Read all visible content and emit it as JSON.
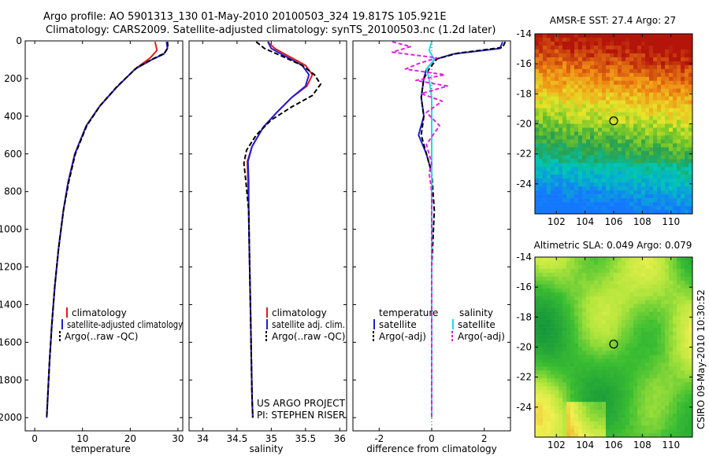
{
  "title_line1": "Argo profile: AO 5901313_130 01-May-2010 20100503_324 19.817S 105.921E",
  "title_line2": "Climatology: CARS2009. Satellite-adjusted climatology: synTS_20100503.nc (1.2d later)",
  "side_label": "CSIRO 09-May-2010 10:30:52",
  "colors": {
    "climatology": "#e41a1c",
    "satellite": "#1f1fd6",
    "argo": "#000000",
    "sat_sal": "#22d8e8",
    "argo_sal": "#e020e0"
  },
  "chart_data": [
    {
      "type": "line",
      "id": "temperature",
      "xlabel": "temperature",
      "xlim": [
        -2,
        31
      ],
      "ylim": [
        0,
        2070
      ],
      "xticks": [
        0,
        10,
        20,
        30
      ],
      "yticks": [
        0,
        200,
        400,
        600,
        800,
        1000,
        1200,
        1400,
        1600,
        1800,
        2000
      ],
      "legend": [
        "climatology",
        "satellite-adjusted climatology",
        "Argo(..raw -QC)"
      ],
      "series": [
        {
          "name": "climatology",
          "color_key": "climatology",
          "dash": "",
          "points": [
            [
              25.2,
              5
            ],
            [
              25.6,
              50
            ],
            [
              24.2,
              90
            ],
            [
              21,
              150
            ],
            [
              17,
              250
            ],
            [
              13.5,
              350
            ],
            [
              10.8,
              450
            ],
            [
              8.4,
              600
            ],
            [
              7,
              750
            ],
            [
              6,
              900
            ],
            [
              5,
              1100
            ],
            [
              4.2,
              1300
            ],
            [
              3.6,
              1500
            ],
            [
              3.1,
              1700
            ],
            [
              2.7,
              1900
            ],
            [
              2.5,
              2000
            ]
          ]
        },
        {
          "name": "satellite-adjusted climatology",
          "color_key": "satellite",
          "dash": "",
          "points": [
            [
              27.6,
              5
            ],
            [
              27.8,
              40
            ],
            [
              27,
              70
            ],
            [
              24.5,
              100
            ],
            [
              21,
              150
            ],
            [
              17,
              250
            ],
            [
              13.5,
              350
            ],
            [
              10.8,
              450
            ],
            [
              8.4,
              600
            ],
            [
              7,
              750
            ],
            [
              6,
              900
            ],
            [
              5,
              1100
            ],
            [
              4.2,
              1300
            ],
            [
              3.6,
              1500
            ],
            [
              3.1,
              1700
            ],
            [
              2.7,
              1900
            ],
            [
              2.5,
              2000
            ]
          ]
        },
        {
          "name": "Argo(..raw -QC)",
          "color_key": "argo",
          "dash": "6,3",
          "points": [
            [
              27.8,
              5
            ],
            [
              27.9,
              35
            ],
            [
              27.2,
              65
            ],
            [
              24.8,
              95
            ],
            [
              21.5,
              140
            ],
            [
              17.3,
              240
            ],
            [
              13.8,
              340
            ],
            [
              10.9,
              450
            ],
            [
              8.5,
              600
            ],
            [
              7.1,
              750
            ],
            [
              6,
              900
            ],
            [
              5,
              1100
            ],
            [
              4.2,
              1300
            ],
            [
              3.6,
              1500
            ],
            [
              3.1,
              1700
            ],
            [
              2.7,
              1900
            ],
            [
              2.5,
              2000
            ]
          ]
        }
      ]
    },
    {
      "type": "line",
      "id": "salinity",
      "xlabel": "salinity",
      "xlim": [
        33.8,
        36.1
      ],
      "ylim": [
        0,
        2070
      ],
      "xticks": [
        34,
        34.5,
        35,
        35.5,
        36
      ],
      "legend": [
        "climatology",
        "satellite adj. clim.",
        "Argo(..raw -QC)"
      ],
      "annotations": [
        "US ARGO PROJECT",
        "PI: STEPHEN RISER"
      ],
      "series": [
        {
          "name": "climatology",
          "color_key": "climatology",
          "dash": "",
          "points": [
            [
              34.95,
              5
            ],
            [
              35.05,
              40
            ],
            [
              35.25,
              80
            ],
            [
              35.5,
              130
            ],
            [
              35.6,
              180
            ],
            [
              35.52,
              240
            ],
            [
              35.3,
              300
            ],
            [
              35.08,
              380
            ],
            [
              34.88,
              460
            ],
            [
              34.72,
              560
            ],
            [
              34.65,
              640
            ],
            [
              34.66,
              750
            ],
            [
              34.67,
              900
            ],
            [
              34.68,
              1100
            ],
            [
              34.69,
              1300
            ],
            [
              34.7,
              1500
            ],
            [
              34.71,
              1700
            ],
            [
              34.72,
              1900
            ],
            [
              34.73,
              2000
            ]
          ]
        },
        {
          "name": "satellite adj. clim.",
          "color_key": "satellite",
          "dash": "",
          "points": [
            [
              34.95,
              5
            ],
            [
              35.0,
              40
            ],
            [
              35.2,
              80
            ],
            [
              35.45,
              130
            ],
            [
              35.55,
              180
            ],
            [
              35.5,
              240
            ],
            [
              35.3,
              300
            ],
            [
              35.08,
              380
            ],
            [
              34.88,
              460
            ],
            [
              34.72,
              560
            ],
            [
              34.66,
              640
            ],
            [
              34.67,
              750
            ],
            [
              34.67,
              900
            ],
            [
              34.68,
              1100
            ],
            [
              34.69,
              1300
            ],
            [
              34.7,
              1500
            ],
            [
              34.71,
              1700
            ],
            [
              34.72,
              1900
            ],
            [
              34.73,
              2000
            ]
          ]
        },
        {
          "name": "Argo(..raw -QC)",
          "color_key": "argo",
          "dash": "6,3",
          "points": [
            [
              34.78,
              5
            ],
            [
              34.9,
              40
            ],
            [
              35.15,
              80
            ],
            [
              35.45,
              130
            ],
            [
              35.63,
              180
            ],
            [
              35.72,
              230
            ],
            [
              35.6,
              290
            ],
            [
              35.3,
              350
            ],
            [
              35.0,
              420
            ],
            [
              34.78,
              500
            ],
            [
              34.64,
              580
            ],
            [
              34.6,
              650
            ],
            [
              34.63,
              750
            ],
            [
              34.67,
              900
            ],
            [
              34.68,
              1100
            ],
            [
              34.69,
              1300
            ],
            [
              34.7,
              1500
            ],
            [
              34.71,
              1700
            ],
            [
              34.72,
              1900
            ],
            [
              34.73,
              2000
            ]
          ]
        }
      ]
    },
    {
      "type": "line",
      "id": "difference",
      "xlabel": "difference from climatology",
      "xlim": [
        -3,
        3
      ],
      "ylim": [
        0,
        2070
      ],
      "xticks": [
        -2,
        0,
        2
      ],
      "legend_headers": [
        "temperature",
        "salinity"
      ],
      "legend_left": [
        "satellite",
        "Argo(-adj)"
      ],
      "legend_right": [
        "satellite",
        "Argo(-adj)"
      ],
      "series": [
        {
          "name": "temp satellite",
          "color_key": "satellite",
          "dash": "",
          "points": [
            [
              2.7,
              5
            ],
            [
              2.6,
              40
            ],
            [
              0.8,
              70
            ],
            [
              0.1,
              100
            ],
            [
              -0.2,
              150
            ],
            [
              -0.3,
              200
            ],
            [
              -0.4,
              300
            ],
            [
              -0.3,
              400
            ],
            [
              -0.5,
              500
            ],
            [
              -0.2,
              600
            ],
            [
              0,
              700
            ],
            [
              0,
              900
            ],
            [
              0,
              1200
            ],
            [
              0,
              1500
            ],
            [
              0,
              1800
            ],
            [
              0,
              2000
            ]
          ]
        },
        {
          "name": "temp Argo(-adj)",
          "color_key": "argo",
          "dash": "6,3",
          "points": [
            [
              2.8,
              5
            ],
            [
              2.7,
              35
            ],
            [
              1.0,
              65
            ],
            [
              0.2,
              95
            ],
            [
              -0.1,
              150
            ],
            [
              -0.3,
              200
            ],
            [
              -0.4,
              300
            ],
            [
              -0.3,
              400
            ],
            [
              -0.4,
              500
            ],
            [
              -0.2,
              600
            ],
            [
              0,
              700
            ],
            [
              0.1,
              900
            ],
            [
              0,
              1200
            ],
            [
              0,
              1500
            ],
            [
              0,
              1800
            ],
            [
              0,
              2000
            ]
          ]
        },
        {
          "name": "sal satellite",
          "color_key": "sat_sal",
          "dash": "",
          "points": [
            [
              0,
              5
            ],
            [
              -0.1,
              50
            ],
            [
              0.1,
              100
            ],
            [
              -0.2,
              150
            ],
            [
              -0.1,
              200
            ],
            [
              0,
              300
            ],
            [
              0,
              500
            ],
            [
              0,
              700
            ],
            [
              0,
              900
            ],
            [
              0,
              1200
            ],
            [
              0,
              1500
            ],
            [
              0,
              1800
            ],
            [
              0,
              2000
            ]
          ]
        },
        {
          "name": "sal Argo(-adj)",
          "color_key": "argo_sal",
          "dash": "5,3",
          "points": [
            [
              -1.5,
              5
            ],
            [
              -0.8,
              30
            ],
            [
              -1.5,
              60
            ],
            [
              0.2,
              90
            ],
            [
              -0.5,
              120
            ],
            [
              -1.0,
              150
            ],
            [
              0.5,
              180
            ],
            [
              -0.6,
              210
            ],
            [
              0.6,
              240
            ],
            [
              -0.4,
              280
            ],
            [
              0.4,
              320
            ],
            [
              -0.2,
              380
            ],
            [
              0.3,
              450
            ],
            [
              -0.2,
              550
            ],
            [
              0,
              650
            ],
            [
              -0.1,
              700
            ],
            [
              0,
              800
            ],
            [
              0,
              900
            ],
            [
              0,
              1200
            ],
            [
              0,
              1500
            ],
            [
              0,
              1800
            ],
            [
              0,
              2000
            ]
          ]
        }
      ]
    },
    {
      "type": "heatmap",
      "id": "sst-map",
      "title": "AMSR-E SST: 27.4  Argo: 27",
      "xlim": [
        100.5,
        111.5
      ],
      "ylim": [
        -26,
        -14
      ],
      "xticks": [
        102,
        104,
        106,
        108,
        110
      ],
      "yticks": [
        -14,
        -16,
        -18,
        -20,
        -22,
        -24
      ],
      "marker": [
        106,
        -19.8
      ]
    },
    {
      "type": "heatmap",
      "id": "sla-map",
      "title": "Altimetric SLA: 0.049  Argo: 0.079",
      "xlim": [
        100.5,
        111.5
      ],
      "ylim": [
        -26,
        -14
      ],
      "xticks": [
        102,
        104,
        106,
        108,
        110
      ],
      "yticks": [
        -14,
        -16,
        -18,
        -20,
        -22,
        -24
      ],
      "marker": [
        106,
        -19.8
      ]
    }
  ]
}
